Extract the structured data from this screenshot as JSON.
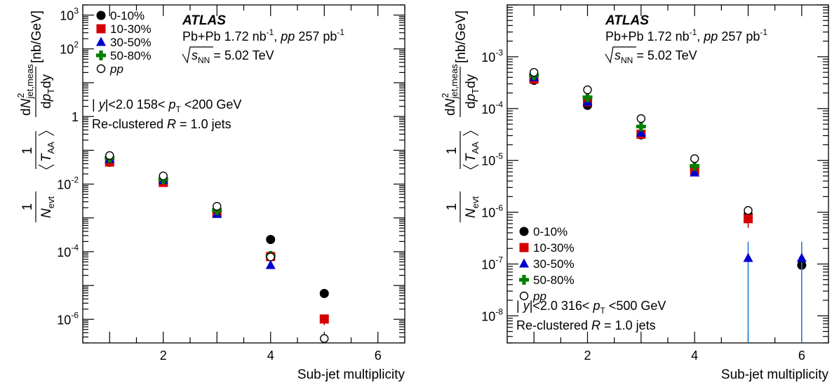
{
  "chart_data": [
    {
      "type": "scatter",
      "title": "",
      "xlabel": "Sub-jet multiplicity",
      "ylabel": "1/N_evt 1/<T_AA> d^2N_jet,meas/dp_T dy [nb/GeV]",
      "ylabel_parts": {
        "units": "[nb/GeV]",
        "num": "dN",
        "num_sup": "2",
        "num_sub": "jet,meas",
        "den": "dp",
        "den_sub": "T",
        "den_tail": "dy",
        "one": "1",
        "nevt": "N",
        "nevt_sub": "evt",
        "taa": "T",
        "taa_sub": "AA"
      },
      "xlim": [
        0.5,
        6.5
      ],
      "ylim": [
        2e-07,
        2000
      ],
      "yscale": "log",
      "x_ticks": [
        2,
        4,
        6
      ],
      "x_tick_labels": [
        "2",
        "4",
        "6"
      ],
      "y_ticks": [
        1e-06,
        0.0001,
        0.01,
        1,
        100,
        1000
      ],
      "y_tick_labels": [
        {
          "base": "10",
          "exp": "-6"
        },
        {
          "base": "10",
          "exp": "-4"
        },
        {
          "base": "10",
          "exp": "-2"
        },
        {
          "base": "1",
          "exp": ""
        },
        {
          "base": "10",
          "exp": "2"
        },
        {
          "base": "10",
          "exp": "3"
        }
      ],
      "legend_position": "top-left",
      "atlas_label": "ATLAS",
      "info_lines": [
        {
          "pre": "Pb+Pb 1.72 nb",
          "sup1": "-1",
          "mid": ", ",
          "ital": "pp",
          "post": " 257 pb",
          "sup2": "-1"
        },
        {
          "sqrt": "s",
          "sub": "NN",
          "post": " =  5.02 TeV"
        }
      ],
      "cut_text": {
        "a": "| ",
        "y": "y",
        "b": "|<2.0     158< ",
        "p": "p",
        "p_sub": "T",
        "c": " <200 GeV"
      },
      "reclustered": {
        "pre": "Re-clustered ",
        "R": "R",
        "post": " = 1.0 jets"
      },
      "series": [
        {
          "name": "0-10%",
          "marker": "circle",
          "color": "#000000",
          "x": [
            1,
            2,
            3,
            4,
            5
          ],
          "y": [
            0.044,
            0.0115,
            0.0015,
            0.00023,
            5.8e-06
          ]
        },
        {
          "name": "10-30%",
          "marker": "square",
          "color": "#d40000",
          "x": [
            1,
            2,
            3,
            4,
            5
          ],
          "y": [
            0.045,
            0.0112,
            0.0014,
            7.2e-05,
            1.02e-06
          ],
          "yerr": [
            0,
            0,
            0,
            0,
            3.5e-07
          ]
        },
        {
          "name": "30-50%",
          "marker": "triangle",
          "color": "#0000cc",
          "x": [
            1,
            2,
            3,
            4,
            5
          ],
          "y": [
            0.055,
            0.013,
            0.0013,
            4e-05,
            null
          ]
        },
        {
          "name": "50-80%",
          "marker": "cross",
          "color": "#008000",
          "x": [
            1,
            2,
            3,
            4,
            5
          ],
          "y": [
            0.06,
            0.014,
            0.0017,
            7.5e-05,
            null
          ]
        },
        {
          "name": "pp",
          "marker": "open-circle",
          "color": "#000000",
          "x": [
            1,
            2,
            3,
            4,
            5
          ],
          "y": [
            0.07,
            0.0175,
            0.0022,
            7e-05,
            2.7e-07
          ]
        }
      ]
    },
    {
      "type": "scatter",
      "title": "",
      "xlabel": "Sub-jet multiplicity",
      "ylabel": "1/N_evt 1/<T_AA> d^2N_jet,meas/dp_T dy [nb/GeV]",
      "ylabel_parts": {
        "units": "[nb/GeV]",
        "num": "dN",
        "num_sup": "2",
        "num_sub": "jet,meas",
        "den": "dp",
        "den_sub": "T",
        "den_tail": "dy",
        "one": "1",
        "nevt": "N",
        "nevt_sub": "evt",
        "taa": "T",
        "taa_sub": "AA"
      },
      "xlim": [
        0.5,
        6.5
      ],
      "ylim": [
        3e-09,
        0.01
      ],
      "yscale": "log",
      "x_ticks": [
        2,
        4,
        6
      ],
      "x_tick_labels": [
        "2",
        "4",
        "6"
      ],
      "y_ticks": [
        1e-08,
        1e-07,
        1e-06,
        1e-05,
        0.0001,
        0.001
      ],
      "y_tick_labels": [
        {
          "base": "10",
          "exp": "-8"
        },
        {
          "base": "10",
          "exp": "-7"
        },
        {
          "base": "10",
          "exp": "-6"
        },
        {
          "base": "10",
          "exp": "-5"
        },
        {
          "base": "10",
          "exp": "-4"
        },
        {
          "base": "10",
          "exp": "-3"
        }
      ],
      "legend_position": "bottom-left",
      "atlas_label": "ATLAS",
      "info_lines": [
        {
          "pre": "Pb+Pb 1.72 nb",
          "sup1": "-1",
          "mid": ", ",
          "ital": "pp",
          "post": " 257 pb",
          "sup2": "-1"
        },
        {
          "sqrt": "s",
          "sub": "NN",
          "post": " =  5.02 TeV"
        }
      ],
      "cut_text": {
        "a": "| ",
        "y": "y",
        "b": "|<2.0     316< ",
        "p": "p",
        "p_sub": "T",
        "c": " <500 GeV"
      },
      "reclustered": {
        "pre": "Re-clustered ",
        "R": "R",
        "post": " = 1.0 jets"
      },
      "series": [
        {
          "name": "0-10%",
          "marker": "circle",
          "color": "#000000",
          "x": [
            1,
            2,
            3,
            4,
            5,
            6
          ],
          "y": [
            0.00035,
            0.000115,
            3.1e-05,
            6.5e-06,
            9e-07,
            9.5e-08
          ]
        },
        {
          "name": "10-30%",
          "marker": "square",
          "color": "#d40000",
          "x": [
            1,
            2,
            3,
            4,
            5
          ],
          "y": [
            0.00037,
            0.000135,
            3.2e-05,
            6.5e-06,
            7.5e-07
          ],
          "yerr": [
            0,
            0,
            0,
            0,
            2.5e-07
          ]
        },
        {
          "name": "30-50%",
          "marker": "triangle",
          "color": "#0000cc",
          "x": [
            1,
            2,
            3,
            4,
            5,
            6
          ],
          "y": [
            0.0004,
            0.000135,
            3.4e-05,
            5.8e-06,
            1.3e-07,
            1.3e-07
          ],
          "yerr_lo": [
            0,
            0,
            0,
            0,
            1.27e-07,
            1.27e-07
          ],
          "yerr_hi": [
            0,
            0,
            0,
            0,
            1.4e-07,
            1.4e-07
          ]
        },
        {
          "name": "50-80%",
          "marker": "cross",
          "color": "#008000",
          "x": [
            1,
            2,
            3,
            4,
            5
          ],
          "y": [
            0.00044,
            0.000165,
            4.5e-05,
            7.8e-06,
            null
          ]
        },
        {
          "name": "pp",
          "marker": "open-circle",
          "color": "#000000",
          "x": [
            1,
            2,
            3,
            4,
            5
          ],
          "y": [
            0.0005,
            0.00023,
            6.4e-05,
            1.08e-05,
            1.08e-06
          ]
        }
      ]
    }
  ]
}
